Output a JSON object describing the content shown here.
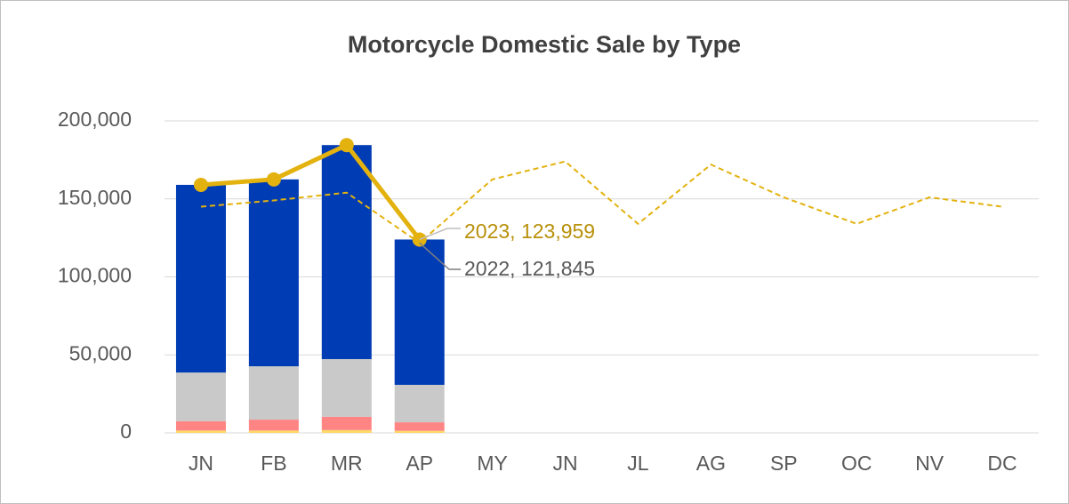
{
  "chart_data": {
    "type": "bar",
    "title": "Motorcycle Domestic Sale by Type",
    "categories": [
      "JN",
      "FB",
      "MR",
      "AP",
      "MY",
      "JN",
      "JL",
      "AG",
      "SP",
      "OC",
      "NV",
      "DC"
    ],
    "stacked": true,
    "series": [
      {
        "type": "bar",
        "color": "#ffd966",
        "values": [
          1500,
          1500,
          1800,
          1300,
          null,
          null,
          null,
          null,
          null,
          null,
          null,
          null
        ]
      },
      {
        "type": "bar",
        "color": "#ff8585",
        "values": [
          6000,
          7000,
          8500,
          5500,
          null,
          null,
          null,
          null,
          null,
          null,
          null,
          null
        ]
      },
      {
        "type": "bar",
        "color": "#c9c9c9",
        "values": [
          31200,
          34200,
          37000,
          24000,
          null,
          null,
          null,
          null,
          null,
          null,
          null,
          null
        ]
      },
      {
        "type": "bar",
        "color": "#003cb4",
        "values": [
          120300,
          119800,
          137200,
          93159,
          null,
          null,
          null,
          null,
          null,
          null,
          null,
          null
        ]
      },
      {
        "type": "line",
        "color": "#e3b20f",
        "dashed": true,
        "values": [
          145000,
          149000,
          154000,
          121845,
          162500,
          174000,
          134000,
          172000,
          151000,
          134000,
          151000,
          145000
        ]
      },
      {
        "type": "line",
        "color": "#e3b20f",
        "dashed": false,
        "markers": true,
        "values": [
          159000,
          162500,
          184500,
          123959,
          null,
          null,
          null,
          null,
          null,
          null,
          null,
          null
        ]
      }
    ],
    "annotations": [
      "2023, 123,959",
      "2022, 121,845"
    ],
    "ylim": [
      0,
      200000
    ],
    "yticks": [
      0,
      {
        "value": 50000,
        "label": "50,000"
      },
      {
        "value": 100000,
        "label": "100,000"
      },
      {
        "value": 150000,
        "label": "150,000"
      },
      {
        "value": 200000,
        "label": "200,000"
      }
    ],
    "grid": true
  }
}
